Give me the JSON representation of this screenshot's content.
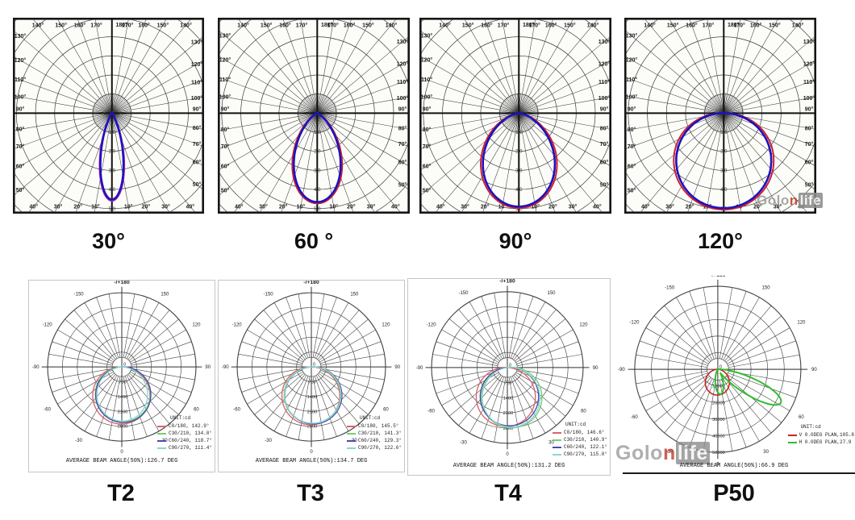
{
  "watermark": {
    "prefix": "Golo",
    "accent": "n",
    "suffix": "life",
    "accent_color": "#c23b2e"
  },
  "chart_data": [
    {
      "id": "beam30",
      "type": "polar",
      "caption": "30°",
      "beam_angle_full_deg": 30,
      "peak_extent_norm": 0.86,
      "curve_primary": "#1d12c0",
      "curve_secondary": "#b81fb8",
      "ring_labels": [
        "1.0",
        "2.0",
        "3.0",
        "4.0",
        "5.0"
      ],
      "frame_angle_labels": [
        "10°",
        "20°",
        "30°",
        "40°",
        "50°",
        "60°",
        "70°",
        "80°",
        "90°",
        "100°",
        "110°",
        "120°",
        "130°",
        "140°",
        "150°",
        "160°",
        "170°"
      ],
      "top_center_label": "180°"
    },
    {
      "id": "beam60",
      "type": "polar",
      "caption": "60 °",
      "beam_angle_full_deg": 60,
      "peak_extent_norm": 0.885,
      "curve_primary": "#1d12c0",
      "curve_secondary": "#cf1f2f",
      "ring_labels": [
        "1.0",
        "2.0",
        "3.0",
        "4.0",
        "5.0"
      ],
      "frame_angle_labels": [
        "10°",
        "20°",
        "30°",
        "40°",
        "50°",
        "60°",
        "70°",
        "80°",
        "90°",
        "100°",
        "110°",
        "120°",
        "130°",
        "140°",
        "150°",
        "160°",
        "170°"
      ],
      "top_center_label": "180°"
    },
    {
      "id": "beam90",
      "type": "polar",
      "caption": "90°",
      "beam_angle_full_deg": 90,
      "peak_extent_norm": 0.93,
      "curve_primary": "#1d12c0",
      "curve_secondary": "#cf1f2f",
      "ring_labels": [
        "1.0",
        "2.0",
        "3.0",
        "4.0",
        "5.0"
      ],
      "frame_angle_labels": [
        "10°",
        "20°",
        "30°",
        "40°",
        "50°",
        "60°",
        "70°",
        "80°",
        "90°",
        "100°",
        "110°",
        "120°",
        "130°",
        "140°",
        "150°",
        "160°",
        "170°"
      ],
      "top_center_label": "180°"
    },
    {
      "id": "beam120",
      "type": "polar",
      "caption": "120°",
      "beam_angle_full_deg": 120,
      "peak_extent_norm": 0.945,
      "curve_primary": "#1d12c0",
      "curve_secondary": "#cf1f2f",
      "ring_labels": [
        "1.0",
        "2.0",
        "3.0",
        "4.0",
        "5.0"
      ],
      "frame_angle_labels": [
        "10°",
        "20°",
        "30°",
        "40°",
        "50°",
        "60°",
        "70°",
        "80°",
        "90°",
        "100°",
        "110°",
        "120°",
        "130°",
        "140°",
        "150°",
        "160°",
        "170°"
      ],
      "top_center_label": "180°"
    },
    {
      "id": "t2",
      "type": "polar",
      "caption": "T2",
      "top_label": "-/+180",
      "unit_label": "UNIT:cd",
      "center_label": "0",
      "angle_labels": [
        -150,
        -120,
        -90,
        -60,
        -30,
        0,
        30,
        60,
        90,
        120,
        150
      ],
      "ring_labels": [
        "700",
        "1400",
        "2100",
        "2800"
      ],
      "series": [
        {
          "label": "C0/180, 142.9°",
          "beam_deg": 142.9,
          "color": "#d96464"
        },
        {
          "label": "C30/210, 134.0°",
          "beam_deg": 134.0,
          "color": "#74d074"
        },
        {
          "label": "C60/240, 118.7°",
          "beam_deg": 118.7,
          "color": "#4a4ab0"
        },
        {
          "label": "C90/270, 111.4°",
          "beam_deg": 111.4,
          "color": "#8ad6d6"
        }
      ],
      "footer": "AVERAGE BEAM ANGLE(50%):126.7 DEG"
    },
    {
      "id": "t3",
      "type": "polar",
      "caption": "T3",
      "top_label": "-/+180",
      "unit_label": "UNIT:cd",
      "center_label": "0",
      "angle_labels": [
        -150,
        -120,
        -90,
        -60,
        -30,
        0,
        30,
        60,
        90,
        120,
        150
      ],
      "ring_labels": [
        "700",
        "1400",
        "2100",
        "2800"
      ],
      "series": [
        {
          "label": "C0/180, 145.5°",
          "beam_deg": 145.5,
          "color": "#d96464"
        },
        {
          "label": "C30/210, 141.3°",
          "beam_deg": 141.3,
          "color": "#74d074"
        },
        {
          "label": "C60/240, 129.3°",
          "beam_deg": 129.3,
          "color": "#4a4ab0"
        },
        {
          "label": "C90/270, 122.6°",
          "beam_deg": 122.6,
          "color": "#8ad6d6"
        }
      ],
      "footer": "AVERAGE BEAM ANGLE(50%):134.7 DEG"
    },
    {
      "id": "t4",
      "type": "polar",
      "caption": "T4",
      "top_label": "-/+180",
      "unit_label": "UNIT:cd",
      "center_label": "0",
      "angle_labels": [
        -150,
        -120,
        -90,
        -60,
        -30,
        0,
        30,
        60,
        90,
        120,
        150
      ],
      "ring_labels": [
        "700",
        "1400",
        "2100",
        "2800"
      ],
      "series": [
        {
          "label": "C0/180, 146.6°",
          "beam_deg": 146.6,
          "color": "#d96464"
        },
        {
          "label": "C30/210, 140.9°",
          "beam_deg": 140.9,
          "color": "#74d074"
        },
        {
          "label": "C60/240, 122.1°",
          "beam_deg": 122.1,
          "color": "#4a4ab0"
        },
        {
          "label": "C90/270, 115.0°",
          "beam_deg": 115.0,
          "color": "#8ad6d6"
        }
      ],
      "footer": "AVERAGE BEAM ANGLE(50%):131.2 DEG"
    },
    {
      "id": "p50",
      "type": "polar",
      "caption": "P50",
      "top_label": "-/+180",
      "unit_label": "UNIT:cd",
      "center_label": "0",
      "angle_labels": [
        -150,
        -120,
        -90,
        -60,
        -30,
        0,
        30,
        60,
        90,
        120,
        150
      ],
      "ring_labels": [
        "10000",
        "20000",
        "30000",
        "40000",
        "50000"
      ],
      "series": [
        {
          "label": "V 0.0DEG PLAN,105.8",
          "beam_deg": 105.8,
          "color": "#cc2222"
        },
        {
          "label": "H 0.0DEG PLAN,27.9",
          "beam_deg": 27.9,
          "color": "#2fbe2f"
        }
      ],
      "footer": "AVERAGE BEAM ANGLE(50%):66.9 DEG"
    }
  ]
}
